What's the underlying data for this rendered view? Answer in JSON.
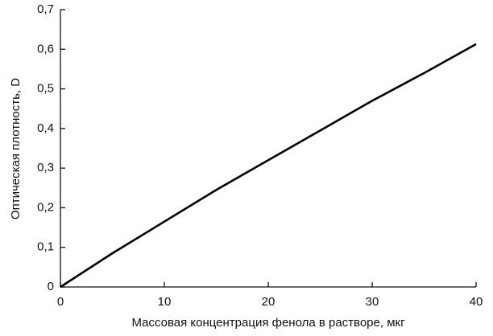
{
  "chart_data": {
    "type": "line",
    "xlabel": "Массовая концентрация фенола в растворе, мкг",
    "ylabel": "Оптическая плотность, D",
    "x": [
      0,
      5,
      10,
      15,
      20,
      25,
      30,
      35,
      40
    ],
    "values": [
      0,
      0.085,
      0.165,
      0.245,
      0.32,
      0.395,
      0.47,
      0.54,
      0.613
    ],
    "color": "#000000",
    "xlim": [
      0,
      40
    ],
    "xticks": [
      0,
      10,
      20,
      30,
      40
    ],
    "ylim": [
      0,
      0.7
    ],
    "yticks": [
      0,
      {
        "value": 0.1,
        "label": "0,1"
      },
      {
        "value": 0.2,
        "label": "0,2"
      },
      {
        "value": 0.3,
        "label": "0,3"
      },
      {
        "value": 0.4,
        "label": "0,4"
      },
      {
        "value": 0.5,
        "label": "0,5"
      },
      {
        "value": 0.6,
        "label": "0,6"
      },
      {
        "value": 0.7,
        "label": "0,7"
      }
    ],
    "grid": false
  }
}
